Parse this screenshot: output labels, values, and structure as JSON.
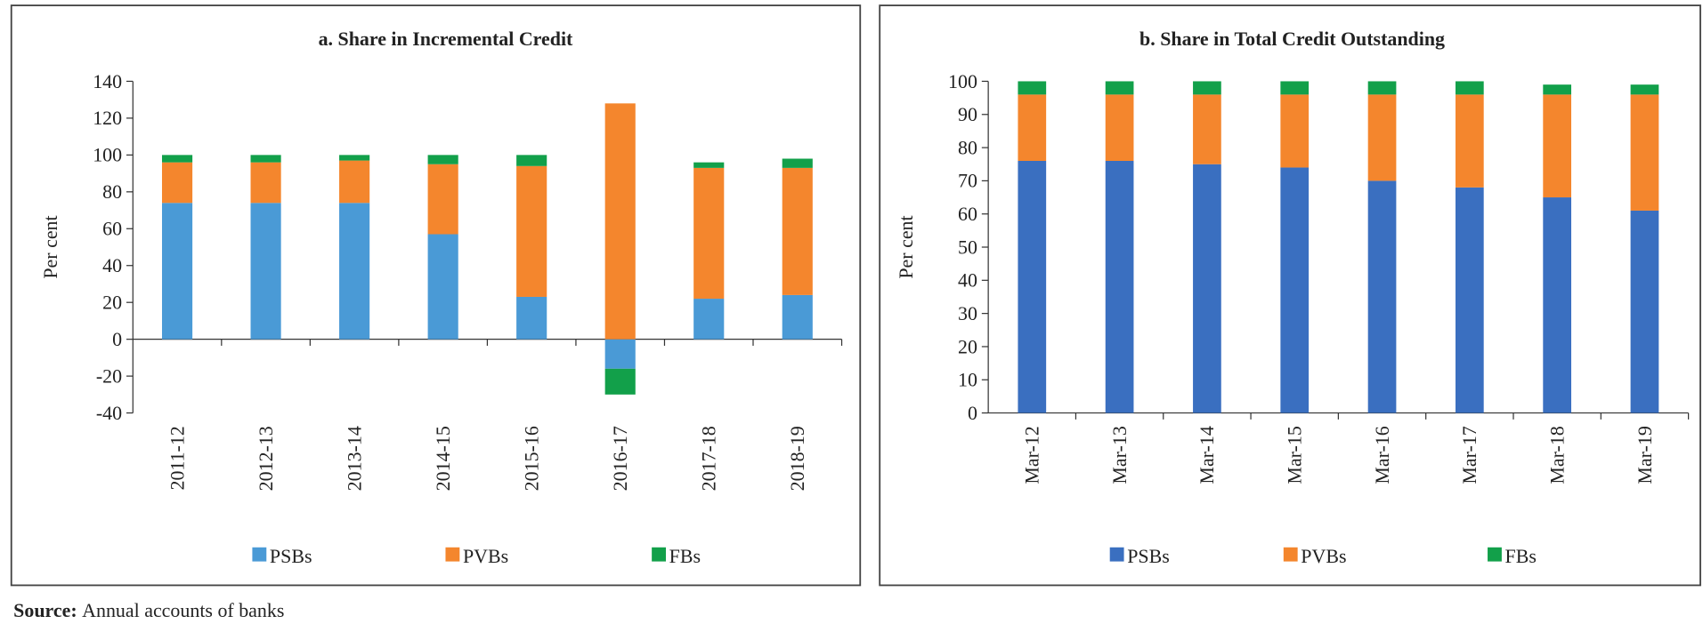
{
  "chart_data": [
    {
      "type": "bar",
      "stacked": true,
      "title": "a.  Share in Incremental Credit",
      "ylabel": "Per cent",
      "categories": [
        "2011-12",
        "2012-13",
        "2013-14",
        "2014-15",
        "2015-16",
        "2016-17",
        "2017-18",
        "2018-19"
      ],
      "series": [
        {
          "name": "PSBs",
          "color": "#4a9ad6",
          "values": [
            74,
            74,
            74,
            57,
            23,
            -16,
            22,
            24
          ]
        },
        {
          "name": "PVBs",
          "color": "#f4862d",
          "values": [
            22,
            22,
            23,
            38,
            71,
            128,
            71,
            69
          ]
        },
        {
          "name": "FBs",
          "color": "#12a04a",
          "values": [
            4,
            4,
            3,
            5,
            6,
            -14,
            3,
            5
          ]
        }
      ],
      "ylim": [
        -40,
        140
      ],
      "yticks": [
        -40,
        -20,
        0,
        20,
        40,
        60,
        80,
        100,
        120,
        140
      ]
    },
    {
      "type": "bar",
      "stacked": true,
      "title": "b. Share in Total Credit  Outstanding",
      "ylabel": "Per cent",
      "categories": [
        "Mar-12",
        "Mar-13",
        "Mar-14",
        "Mar-15",
        "Mar-16",
        "Mar-17",
        "Mar-18",
        "Mar-19"
      ],
      "series": [
        {
          "name": "PSBs",
          "color": "#3a6fc0",
          "values": [
            76,
            76,
            75,
            74,
            70,
            68,
            65,
            61
          ]
        },
        {
          "name": "PVBs",
          "color": "#f4862d",
          "values": [
            20,
            20,
            21,
            22,
            26,
            28,
            31,
            35
          ]
        },
        {
          "name": "FBs",
          "color": "#12a04a",
          "values": [
            4,
            4,
            4,
            4,
            4,
            4,
            3,
            3
          ]
        }
      ],
      "ylim": [
        0,
        100
      ],
      "yticks": [
        0,
        10,
        20,
        30,
        40,
        50,
        60,
        70,
        80,
        90,
        100
      ]
    }
  ],
  "source_label": "Source:",
  "source": "Annual accounts of banks"
}
